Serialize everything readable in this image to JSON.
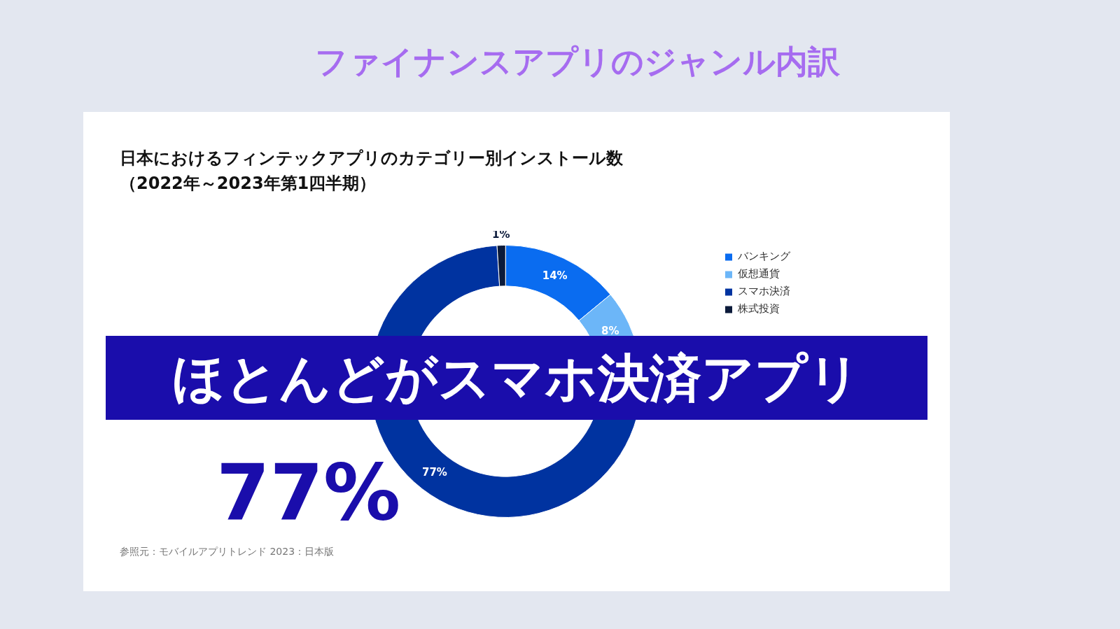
{
  "chart_data": {
    "type": "donut",
    "title": "ファイナンスアプリのジャンル内訳",
    "subtitle": "日本におけるフィンテックアプリのカテゴリー別インストール数（2022年～2023年第1四半期）",
    "categories": [
      "バンキング",
      "仮想通貨",
      "スマホ決済",
      "株式投資"
    ],
    "values": [
      14,
      8,
      77,
      1
    ],
    "colors": [
      "#0a6cf0",
      "#6cb6f8",
      "#0033a0",
      "#0b1a3a"
    ],
    "value_labels": [
      "14%",
      "8%",
      "77%",
      "1%"
    ],
    "legend": "top right",
    "annotations": [
      "ほとんどがスマホ決済アプリ",
      "77%",
      "参照元：モバイルアプリトレンド 2023：日本版"
    ]
  }
}
